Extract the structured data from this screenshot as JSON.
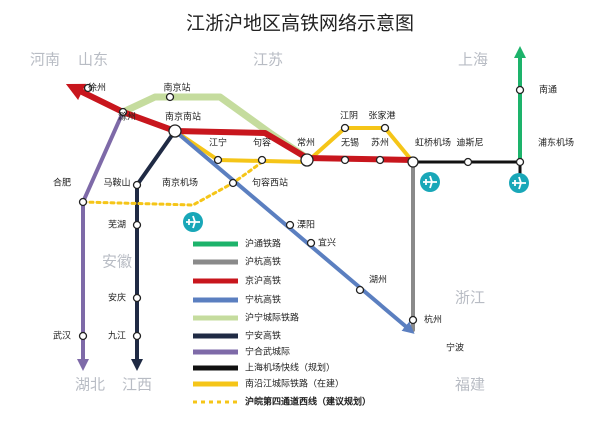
{
  "title": "江浙沪地区高铁网络示意图",
  "regions": [
    "河南",
    "山东",
    "江苏",
    "上海",
    "安徽",
    "浙江",
    "湖北",
    "江西",
    "福建"
  ],
  "stations": [
    "徐州",
    "滁州",
    "南京站",
    "南京南站",
    "江阴",
    "张家港",
    "江宁",
    "句容",
    "常州",
    "无锡",
    "苏州",
    "虹桥机场",
    "迪斯尼",
    "浦东机场",
    "南通",
    "合肥",
    "马鞍山",
    "南京机场",
    "句容西站",
    "芜湖",
    "溧阳",
    "宜兴",
    "湖州",
    "安庆",
    "杭州",
    "宁波",
    "武汉",
    "九江"
  ],
  "legend": [
    "沪通铁路",
    "沪杭高铁",
    "京沪高铁",
    "宁杭高铁",
    "沪宁城际铁路",
    "宁安高铁",
    "宁合武城际",
    "上海机场快线（规划）",
    "南沿江城际铁路（在建）",
    "沪皖第四通道西线（建议规划）"
  ]
}
